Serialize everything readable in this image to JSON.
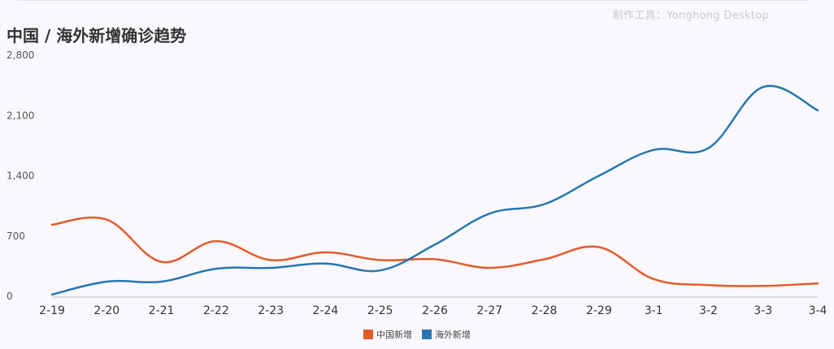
{
  "header": {
    "title": "中国 / 海外新增确诊趋势",
    "watermark": "制作工具：Yonghong Desktop"
  },
  "colors": {
    "china": "#e35b2b",
    "overseas": "#2677b1",
    "grid": "#e6e4ea",
    "axis": "#bbbbbb"
  },
  "legend": [
    {
      "label": "中国新增",
      "color": "#e35b2b"
    },
    {
      "label": "海外新增",
      "color": "#2677b1"
    }
  ],
  "chart_data": {
    "type": "line",
    "title": "中国 / 海外新增确诊趋势",
    "categories": [
      "2-19",
      "2-20",
      "2-21",
      "2-22",
      "2-23",
      "2-24",
      "2-25",
      "2-26",
      "2-27",
      "2-28",
      "2-29",
      "3-1",
      "3-2",
      "3-3",
      "3-4"
    ],
    "ylim": [
      0,
      2800
    ],
    "yticks": [
      "0",
      "700",
      "1,400",
      "2,100",
      "2,800"
    ],
    "ytick_values": [
      0,
      700,
      1400,
      2100,
      2800
    ],
    "grid": false,
    "legend_position": "bottom",
    "smooth": true,
    "series": [
      {
        "name": "中国新增",
        "color": "#e35b2b",
        "values": [
          830,
          890,
          400,
          640,
          420,
          510,
          420,
          430,
          330,
          430,
          570,
          200,
          130,
          120,
          150
        ]
      },
      {
        "name": "海外新增",
        "color": "#2677b1",
        "values": [
          20,
          170,
          170,
          320,
          330,
          380,
          300,
          600,
          960,
          1070,
          1400,
          1700,
          1720,
          2430,
          2160
        ]
      }
    ]
  }
}
